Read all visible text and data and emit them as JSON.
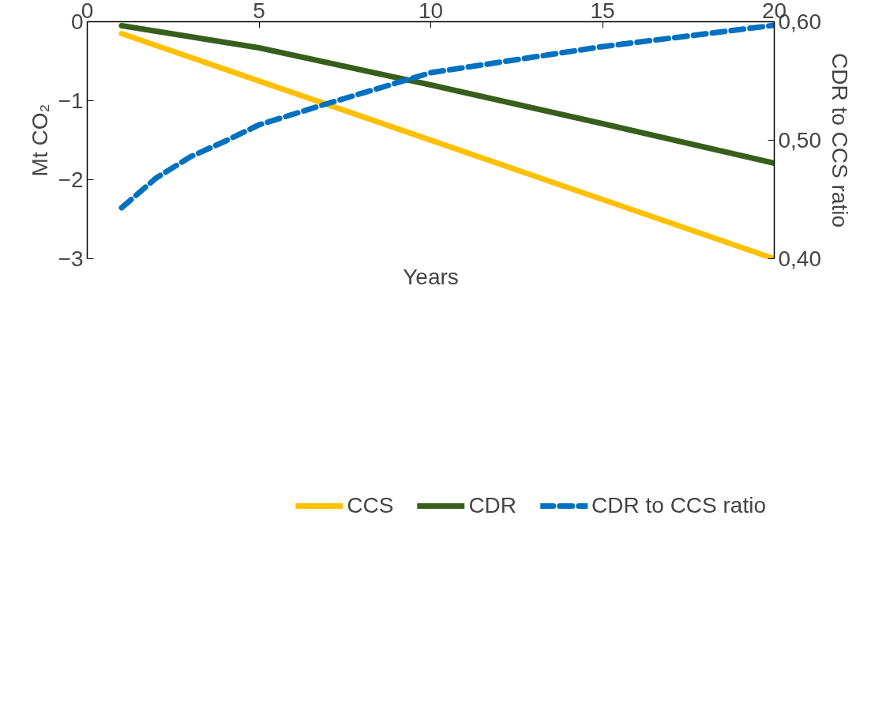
{
  "chart_data": {
    "type": "line",
    "xlabel": "Years",
    "ylabel": "Mt CO₂",
    "y2label": "CDR to CCS ratio",
    "xlim": [
      0,
      20
    ],
    "xticks": [
      0,
      5,
      10,
      15,
      20
    ],
    "ylim": [
      -3,
      0
    ],
    "yticks": [
      -3,
      -2,
      -1,
      0
    ],
    "y2lim": [
      0.4,
      0.6
    ],
    "y2ticks": [
      {
        "value": 0.4,
        "label": "0,40"
      },
      {
        "value": 0.5,
        "label": "0,50"
      },
      {
        "value": 0.6,
        "label": "0,60"
      }
    ],
    "grid": false,
    "legend": "bottom",
    "series": [
      {
        "name": "CCS",
        "color": "#ffc000",
        "x": [
          1,
          20
        ],
        "values": [
          -0.15,
          -3.0
        ]
      },
      {
        "name": "CDR",
        "color": "#375f1b",
        "x": [
          1,
          5,
          10,
          15,
          20
        ],
        "values": [
          -0.05,
          -0.33,
          -0.8,
          -1.29,
          -1.79
        ]
      },
      {
        "name": "CDR to CCS ratio",
        "color": "#0070c0",
        "axis": "y2",
        "line_style": "dashed",
        "x": [
          1,
          2,
          3,
          4,
          5,
          7,
          10,
          15,
          20
        ],
        "values": [
          0.443,
          0.468,
          0.486,
          0.499,
          0.513,
          0.531,
          0.557,
          0.579,
          0.597
        ]
      }
    ]
  }
}
